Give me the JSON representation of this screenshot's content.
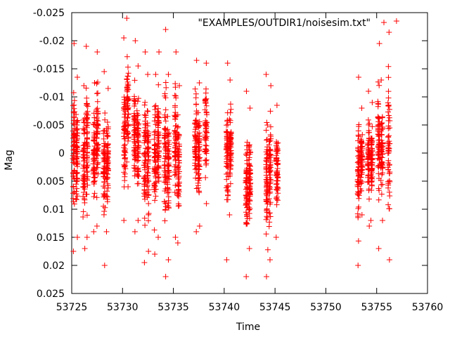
{
  "chart_data": {
    "type": "scatter",
    "xlabel": "Time",
    "ylabel": "Mag",
    "xlim": [
      53725,
      53760
    ],
    "ylim": [
      0.025,
      -0.025
    ],
    "y_inverted": true,
    "x_ticks": [
      53725,
      53730,
      53735,
      53740,
      53745,
      53750,
      53755,
      53760
    ],
    "x_tick_labels": [
      "53725",
      "53730",
      "53735",
      "53740",
      "53745",
      "53750",
      "53755",
      "53760"
    ],
    "y_ticks": [
      -0.025,
      -0.02,
      -0.015,
      -0.01,
      -0.005,
      0,
      0.005,
      0.01,
      0.015,
      0.02,
      0.025
    ],
    "y_tick_labels": [
      "-0.025",
      "-0.02",
      "-0.015",
      "-0.01",
      "-0.005",
      "0",
      "0.005",
      "0.01",
      "0.015",
      "0.02",
      "0.025"
    ],
    "grid": false,
    "legend": {
      "position": "top-right",
      "label": "\"EXAMPLES/OUTDIR1/noisesim.txt\""
    },
    "marker": "+",
    "marker_color": "#ff0000",
    "series": [
      {
        "name": "\"EXAMPLES/OUTDIR1/noisesim.txt\"",
        "color": "#ff0000",
        "clusters": [
          {
            "t": 53725.2,
            "min": -0.0195,
            "max": 0.0175
          },
          {
            "t": 53725.5,
            "min": -0.0135,
            "max": 0.015
          },
          {
            "t": 53726.2,
            "min": -0.012,
            "max": 0.017
          },
          {
            "t": 53726.5,
            "min": -0.019,
            "max": 0.015
          },
          {
            "t": 53727.2,
            "min": -0.0125,
            "max": 0.014
          },
          {
            "t": 53727.5,
            "min": -0.018,
            "max": 0.013
          },
          {
            "t": 53728.2,
            "min": -0.0145,
            "max": 0.02
          },
          {
            "t": 53728.5,
            "min": -0.0115,
            "max": 0.014
          },
          {
            "t": 53730.2,
            "min": -0.0205,
            "max": 0.012
          },
          {
            "t": 53730.5,
            "min": -0.024,
            "max": 0.006
          },
          {
            "t": 53731.2,
            "min": -0.02,
            "max": 0.014
          },
          {
            "t": 53731.5,
            "min": -0.0155,
            "max": 0.012
          },
          {
            "t": 53732.2,
            "min": -0.018,
            "max": 0.0195
          },
          {
            "t": 53732.5,
            "min": -0.014,
            "max": 0.0175
          },
          {
            "t": 53733.2,
            "min": -0.014,
            "max": 0.018
          },
          {
            "t": 53733.5,
            "min": -0.018,
            "max": 0.015
          },
          {
            "t": 53734.2,
            "min": -0.022,
            "max": 0.022
          },
          {
            "t": 53734.5,
            "min": -0.014,
            "max": 0.019
          },
          {
            "t": 53735.2,
            "min": -0.018,
            "max": 0.015
          },
          {
            "t": 53735.5,
            "min": -0.012,
            "max": 0.016
          },
          {
            "t": 53737.2,
            "min": -0.0165,
            "max": 0.014
          },
          {
            "t": 53737.5,
            "min": -0.0125,
            "max": 0.013
          },
          {
            "t": 53738.2,
            "min": -0.016,
            "max": 0.009
          },
          {
            "t": 53740.3,
            "min": -0.016,
            "max": 0.019
          },
          {
            "t": 53740.6,
            "min": -0.013,
            "max": 0.011
          },
          {
            "t": 53742.2,
            "min": -0.011,
            "max": 0.022
          },
          {
            "t": 53742.5,
            "min": -0.008,
            "max": 0.017
          },
          {
            "t": 53744.2,
            "min": -0.014,
            "max": 0.022
          },
          {
            "t": 53744.5,
            "min": -0.012,
            "max": 0.019
          },
          {
            "t": 53745.2,
            "min": -0.0085,
            "max": 0.015
          },
          {
            "t": 53753.2,
            "min": -0.0135,
            "max": 0.02
          },
          {
            "t": 53753.5,
            "min": -0.008,
            "max": 0.011
          },
          {
            "t": 53754.2,
            "min": -0.011,
            "max": 0.013
          },
          {
            "t": 53754.5,
            "min": -0.009,
            "max": 0.012
          },
          {
            "t": 53755.2,
            "min": -0.0195,
            "max": 0.017
          },
          {
            "t": 53755.5,
            "min": -0.013,
            "max": 0.012
          },
          {
            "t": 53756.2,
            "min": -0.0215,
            "max": 0.019
          },
          {
            "t": 53757.0,
            "min": -0.0235,
            "max": -0.0235
          }
        ]
      }
    ]
  }
}
